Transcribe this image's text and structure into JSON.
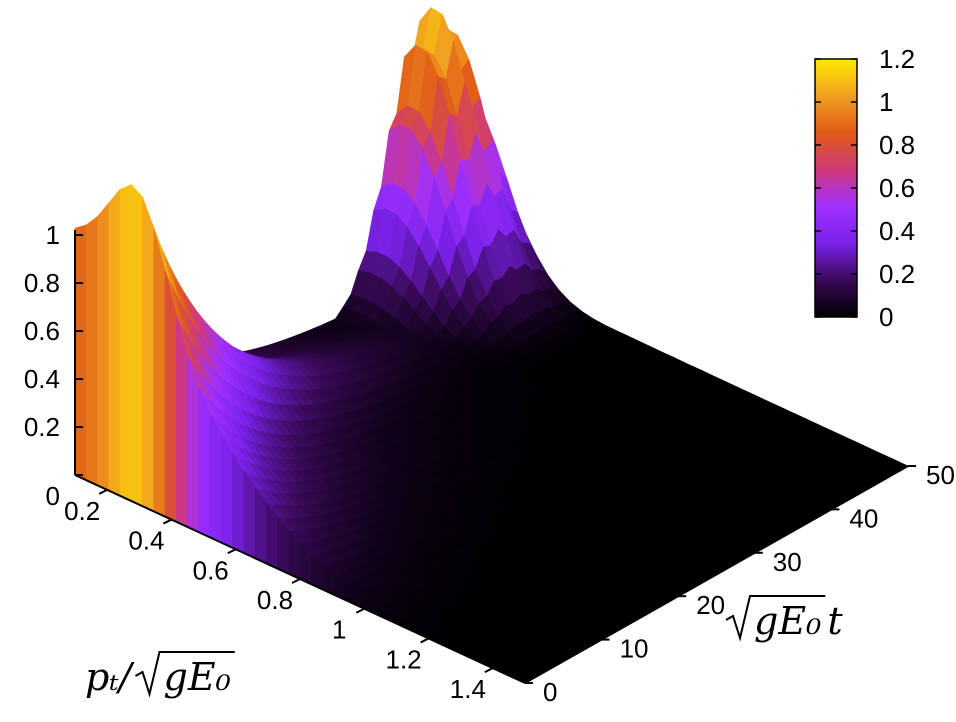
{
  "chart_data": {
    "type": "surface3d",
    "x_axis": {
      "label": "p_T/√(gE_0)",
      "ticks": [
        0.2,
        0.4,
        0.6,
        0.8,
        1,
        1.2,
        1.4
      ],
      "tick_labels": [
        "0.2",
        "0.4",
        "0.6",
        "0.8",
        "1",
        "1.2",
        "1.4"
      ],
      "range": [
        0.1,
        1.5
      ]
    },
    "y_axis": {
      "label": "√(gE_0)t",
      "ticks": [
        0,
        10,
        20,
        30,
        40,
        50
      ],
      "tick_labels": [
        "0",
        "10",
        "20",
        "30",
        "40",
        "50"
      ],
      "range": [
        0,
        50
      ]
    },
    "z_axis": {
      "ticks": [
        0,
        0.2,
        0.4,
        0.6,
        0.8,
        1
      ],
      "tick_labels": [
        "0",
        "0.2",
        "0.4",
        "0.6",
        "0.8",
        "1"
      ],
      "range": [
        0,
        1.2
      ]
    },
    "colorbar": {
      "range": [
        0,
        1.2
      ],
      "ticks": [
        0,
        0.2,
        0.4,
        0.6,
        0.8,
        1,
        1.2
      ],
      "tick_labels": [
        "0",
        "0.2",
        "0.4",
        "0.6",
        "0.8",
        "1",
        "1.2"
      ],
      "colors": [
        "#000000",
        "#3a0a5a",
        "#7a22e8",
        "#a030ff",
        "#d03a7a",
        "#e05a18",
        "#f0a020",
        "#ffe800"
      ]
    },
    "features": [
      {
        "description": "initial ridge at t=0",
        "t": 0,
        "pT_peak": 0.1,
        "height": 1.0,
        "pT_width": 0.65
      },
      {
        "description": "late-time peak",
        "t": 45,
        "pT_peak": 0.15,
        "height": 1.1,
        "t_width": 6
      }
    ],
    "grid": false
  }
}
